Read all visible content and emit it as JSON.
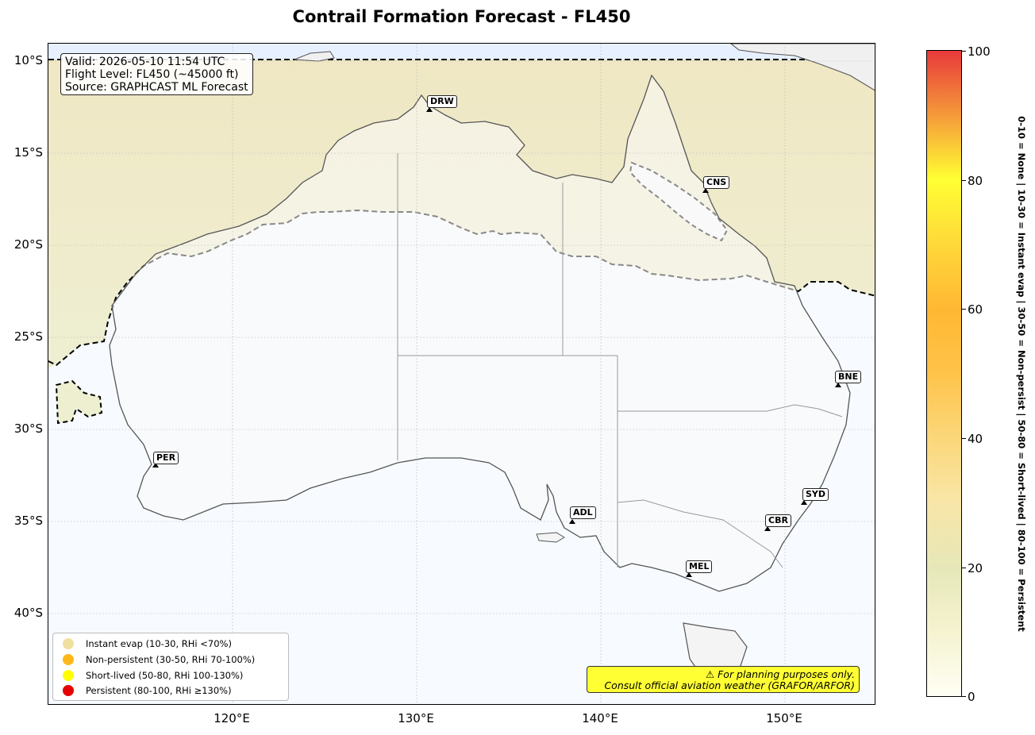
{
  "title": "Contrail Formation Forecast - FL450",
  "info": {
    "valid": "Valid: 2026-05-10 11:54 UTC",
    "flight_level": "Flight Level: FL450 (~45000 ft)",
    "source": "Source: GRAPHCAST ML Forecast"
  },
  "lat_ticks": [
    "10°S",
    "15°S",
    "20°S",
    "25°S",
    "30°S",
    "35°S",
    "40°S"
  ],
  "lon_ticks": [
    "120°E",
    "130°E",
    "140°E",
    "150°E"
  ],
  "airports": [
    {
      "code": "DRW"
    },
    {
      "code": "CNS"
    },
    {
      "code": "BNE"
    },
    {
      "code": "PER"
    },
    {
      "code": "SYD"
    },
    {
      "code": "ADL"
    },
    {
      "code": "CBR"
    },
    {
      "code": "MEL"
    }
  ],
  "legend": [
    {
      "label": "Instant evap (10-30, RHi <70%)",
      "color": "#f0e0a0"
    },
    {
      "label": "Non-persistent (30-50, RHi 70-100%)",
      "color": "#ffb81a"
    },
    {
      "label": "Short-lived (50-80, RHi 100-130%)",
      "color": "#ffff00"
    },
    {
      "label": "Persistent (80-100, RHi ≥130%)",
      "color": "#e60000"
    }
  ],
  "disclaimer": {
    "line1": "⚠ For planning purposes only.",
    "line2": "Consult official aviation weather (GRAFOR/ARFOR)"
  },
  "colorbar": {
    "ticks": [
      "0",
      "20",
      "40",
      "60",
      "80",
      "100"
    ],
    "caption": "0-10 = None  |  10-30 = Instant evap  |  30-50 = Non-persist  |  50-80 = Short-lived  |  80-100 = Persistent"
  }
}
